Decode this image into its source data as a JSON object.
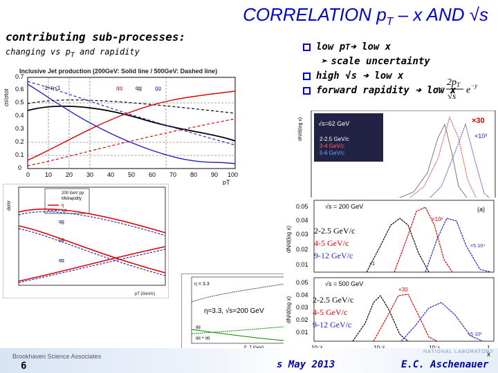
{
  "slide": {
    "title_main": "CORRELATION p",
    "title_sub": "T",
    "title_rest": " – x AND √s",
    "subheading": "contributing sub-processes:",
    "subheading2": "changing vs p",
    "subheading2_sub": "T",
    "subheading2_rest": " and rapidity"
  },
  "bullets": {
    "b1_a": "low p",
    "b1_sub": "T",
    "b1_b": " ➔ low x",
    "b2": "scale uncertainty",
    "b3": "high √s ➔ low x",
    "b4": "forward rapidity ➔ low x",
    "formula": "~ 2pT/√s e^-y"
  },
  "panel1": {
    "caption": "Inclusive Jet production (200GeV: Solid line / 500GeV: Dashed line)",
    "ylabel": "σi/σtot",
    "eta_label": "-1<η<1",
    "legend": [
      "qq",
      "qg",
      "gg"
    ],
    "xlabel": "pT",
    "xticks": [
      "0",
      "10",
      "20",
      "30",
      "40",
      "50",
      "60",
      "70",
      "80",
      "90",
      "100"
    ],
    "yticks": [
      "0",
      "0.1",
      "0.2",
      "0.3",
      "0.4",
      "0.5",
      "0.6",
      "0.7"
    ]
  },
  "panel2": {
    "legend_title": "200 GeV pp",
    "legend_sub": "Midrapidity",
    "legend": [
      "η",
      "π0"
    ],
    "labels": [
      "qg",
      "gg",
      "qq"
    ],
    "ylabel": "dσ/σ",
    "xlabel": "pT (GeV/c)"
  },
  "panel3": {
    "eta_text": "η=3.3, √s=200 GeV",
    "eta_small": "η = 3.3",
    "labels": [
      "qg",
      "gg",
      "qq + qq̄"
    ],
    "xlabel": "E_T [GeV]"
  },
  "panel4": {
    "sqrt_label": "√s=62 GeV",
    "ylabel": "dN/d(log x)",
    "legend": [
      "2-2.5 GeV/c",
      "3-4 GeV/c",
      "5-6 GeV/c"
    ],
    "mult1": "×30",
    "mult2": "×10³"
  },
  "panel5": {
    "sqrt_label": "√s = 200 GeV",
    "tag": "(a)",
    "ylabel": "dN/d(log x)",
    "yticks": [
      "0.05",
      "0.04",
      "0.03",
      "0.02",
      "0.01"
    ],
    "legend": [
      "2-2.5 GeV/c",
      "4-5 GeV/c",
      "9-12 GeV/c"
    ],
    "mult1": "×10²",
    "mult2": "×5·10⁴",
    "mult3": "×1"
  },
  "panel6": {
    "sqrt_label": "√s = 500 GeV",
    "ylabel": "dN/d(log x)",
    "yticks": [
      "0.05",
      "0.04",
      "0.03",
      "0.02",
      "0.01"
    ],
    "legend": [
      "2-2.5 GeV/c",
      "4-5 GeV/c",
      "9-12 GeV/c"
    ],
    "mult1": "×30",
    "mult2": "×5·10²",
    "xticks": [
      "10⁻³",
      "10⁻²",
      "10⁻¹",
      "1"
    ]
  },
  "footer": {
    "org": "Brookhaven Science Associates",
    "page": "6",
    "date_text": "s May 2013",
    "author": "E.C. Aschenauer",
    "lab": "NATIONAL LABORATORY",
    "x_label": "x"
  },
  "colors": {
    "title": "#0000cc",
    "accent_red": "#dd0000",
    "accent_blue": "#2244cc"
  }
}
